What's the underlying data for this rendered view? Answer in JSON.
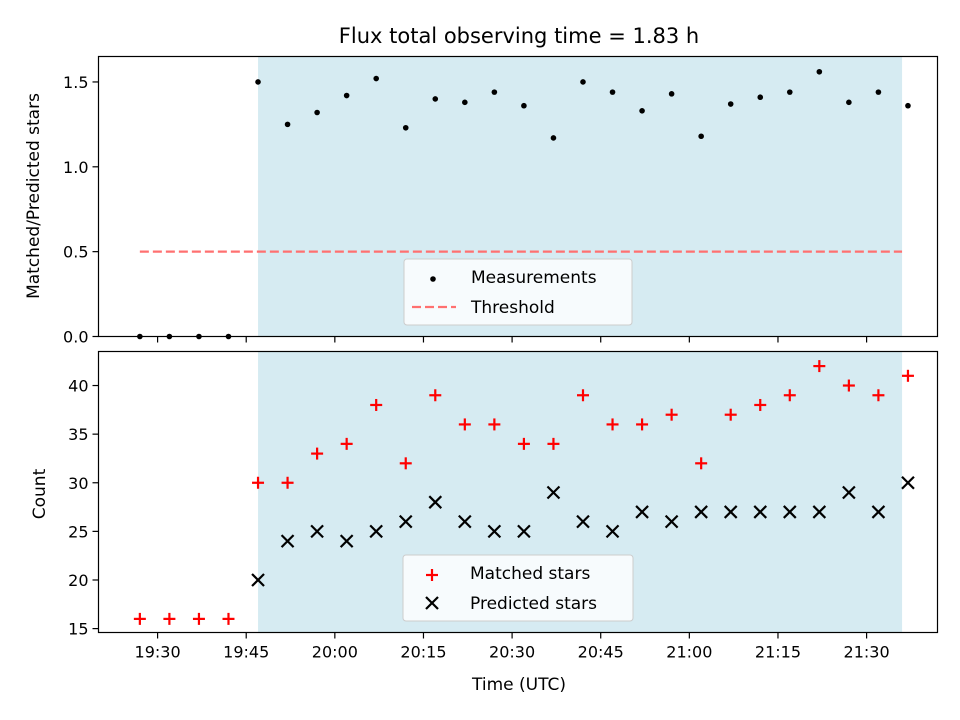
{
  "title": "Flux total observing time = 1.83 h",
  "colors": {
    "shade": "#add8e6",
    "threshold": "#ff7070",
    "matched": "#ff0000",
    "predicted": "#000000",
    "measure": "#000000"
  },
  "chart_data": [
    {
      "type": "scatter",
      "ylabel": "Matched/Predicted stars",
      "ylim": [
        0,
        1.65
      ],
      "yticks": [
        "0.0",
        "0.5",
        "1.0",
        "1.5"
      ],
      "ytick_values": [
        0,
        0.5,
        1.0,
        1.5
      ],
      "xlim": [
        "19:20",
        "21:42"
      ],
      "shaded_span": [
        "19:47",
        "21:36"
      ],
      "legend": {
        "placement": "lower-center",
        "entries": [
          "Measurements",
          "Threshold"
        ]
      },
      "series": [
        {
          "name": "Measurements",
          "marker": "dot",
          "x": [
            "19:27",
            "19:32",
            "19:37",
            "19:42",
            "19:47",
            "19:52",
            "19:57",
            "20:02",
            "20:07",
            "20:12",
            "20:17",
            "20:22",
            "20:27",
            "20:32",
            "20:37",
            "20:42",
            "20:47",
            "20:52",
            "20:57",
            "21:02",
            "21:07",
            "21:12",
            "21:17",
            "21:22",
            "21:27",
            "21:32",
            "21:37"
          ],
          "values": [
            0,
            0,
            0,
            0,
            1.5,
            1.25,
            1.32,
            1.42,
            1.52,
            1.23,
            1.4,
            1.38,
            1.44,
            1.36,
            1.17,
            1.5,
            1.44,
            1.33,
            1.43,
            1.18,
            1.37,
            1.41,
            1.44,
            1.56,
            1.38,
            1.44,
            1.36
          ]
        },
        {
          "name": "Threshold",
          "style": "dashed",
          "x": [
            "19:27",
            "21:36"
          ],
          "values": [
            0.5,
            0.5
          ]
        }
      ]
    },
    {
      "type": "scatter",
      "ylabel": "Count",
      "xlabel": "Time (UTC)",
      "ylim": [
        14.6,
        43.5
      ],
      "yticks": [
        "15",
        "20",
        "25",
        "30",
        "35",
        "40"
      ],
      "ytick_values": [
        15,
        20,
        25,
        30,
        35,
        40
      ],
      "xlim": [
        "19:20",
        "21:42"
      ],
      "xticks": [
        "19:30",
        "19:45",
        "20:00",
        "20:15",
        "20:30",
        "20:45",
        "21:00",
        "21:15",
        "21:30"
      ],
      "shaded_span": [
        "19:47",
        "21:36"
      ],
      "legend": {
        "placement": "lower-center",
        "entries": [
          "Matched stars",
          "Predicted stars"
        ]
      },
      "series": [
        {
          "name": "Matched stars",
          "marker": "plus",
          "x": [
            "19:27",
            "19:32",
            "19:37",
            "19:42",
            "19:47",
            "19:52",
            "19:57",
            "20:02",
            "20:07",
            "20:12",
            "20:17",
            "20:22",
            "20:27",
            "20:32",
            "20:37",
            "20:42",
            "20:47",
            "20:52",
            "20:57",
            "21:02",
            "21:07",
            "21:12",
            "21:17",
            "21:22",
            "21:27",
            "21:32",
            "21:37"
          ],
          "values": [
            16,
            16,
            16,
            16,
            30,
            30,
            33,
            34,
            38,
            32,
            39,
            36,
            36,
            34,
            34,
            39,
            36,
            36,
            37,
            32,
            37,
            38,
            39,
            42,
            40,
            39,
            41
          ]
        },
        {
          "name": "Predicted stars",
          "marker": "x",
          "x": [
            "19:47",
            "19:52",
            "19:57",
            "20:02",
            "20:07",
            "20:12",
            "20:17",
            "20:22",
            "20:27",
            "20:32",
            "20:37",
            "20:42",
            "20:47",
            "20:52",
            "20:57",
            "21:02",
            "21:07",
            "21:12",
            "21:17",
            "21:22",
            "21:27",
            "21:32",
            "21:37"
          ],
          "values": [
            20,
            24,
            25,
            24,
            25,
            26,
            28,
            26,
            25,
            25,
            29,
            26,
            25,
            27,
            26,
            27,
            27,
            27,
            27,
            27,
            29,
            27,
            30
          ]
        }
      ]
    }
  ]
}
